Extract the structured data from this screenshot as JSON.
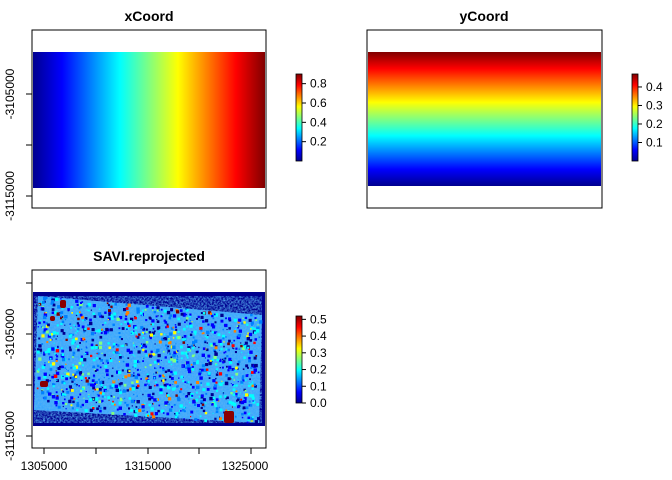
{
  "palette": [
    "#00008F",
    "#0000FF",
    "#0080FF",
    "#00FFFF",
    "#80FF80",
    "#FFFF00",
    "#FF8000",
    "#FF0000",
    "#800000"
  ],
  "nodata_color": "#ffffff",
  "chart_data": [
    {
      "type": "heatmap",
      "title": "xCoord",
      "gradient": "horizontal",
      "x_ticks": [],
      "y_ticks": [
        "-3105000",
        "-3115000"
      ],
      "legend_ticks": [
        "0.2",
        "0.4",
        "0.6",
        "0.8"
      ],
      "legend_range": [
        0.0,
        0.9
      ]
    },
    {
      "type": "heatmap",
      "title": "yCoord",
      "gradient": "vertical",
      "x_ticks": [],
      "y_ticks": [],
      "legend_ticks": [
        "0.1",
        "0.2",
        "0.3",
        "0.4"
      ],
      "legend_range": [
        0.0,
        0.47
      ]
    },
    {
      "type": "heatmap",
      "title": "SAVI.reprojected",
      "gradient": "noise",
      "x_ticks": [
        "1305000",
        "1315000",
        "1325000"
      ],
      "y_ticks": [
        "-3105000",
        "-3115000"
      ],
      "legend_ticks": [
        "0.0",
        "0.1",
        "0.2",
        "0.3",
        "0.4",
        "0.5"
      ],
      "legend_range": [
        0.0,
        0.52
      ]
    }
  ]
}
